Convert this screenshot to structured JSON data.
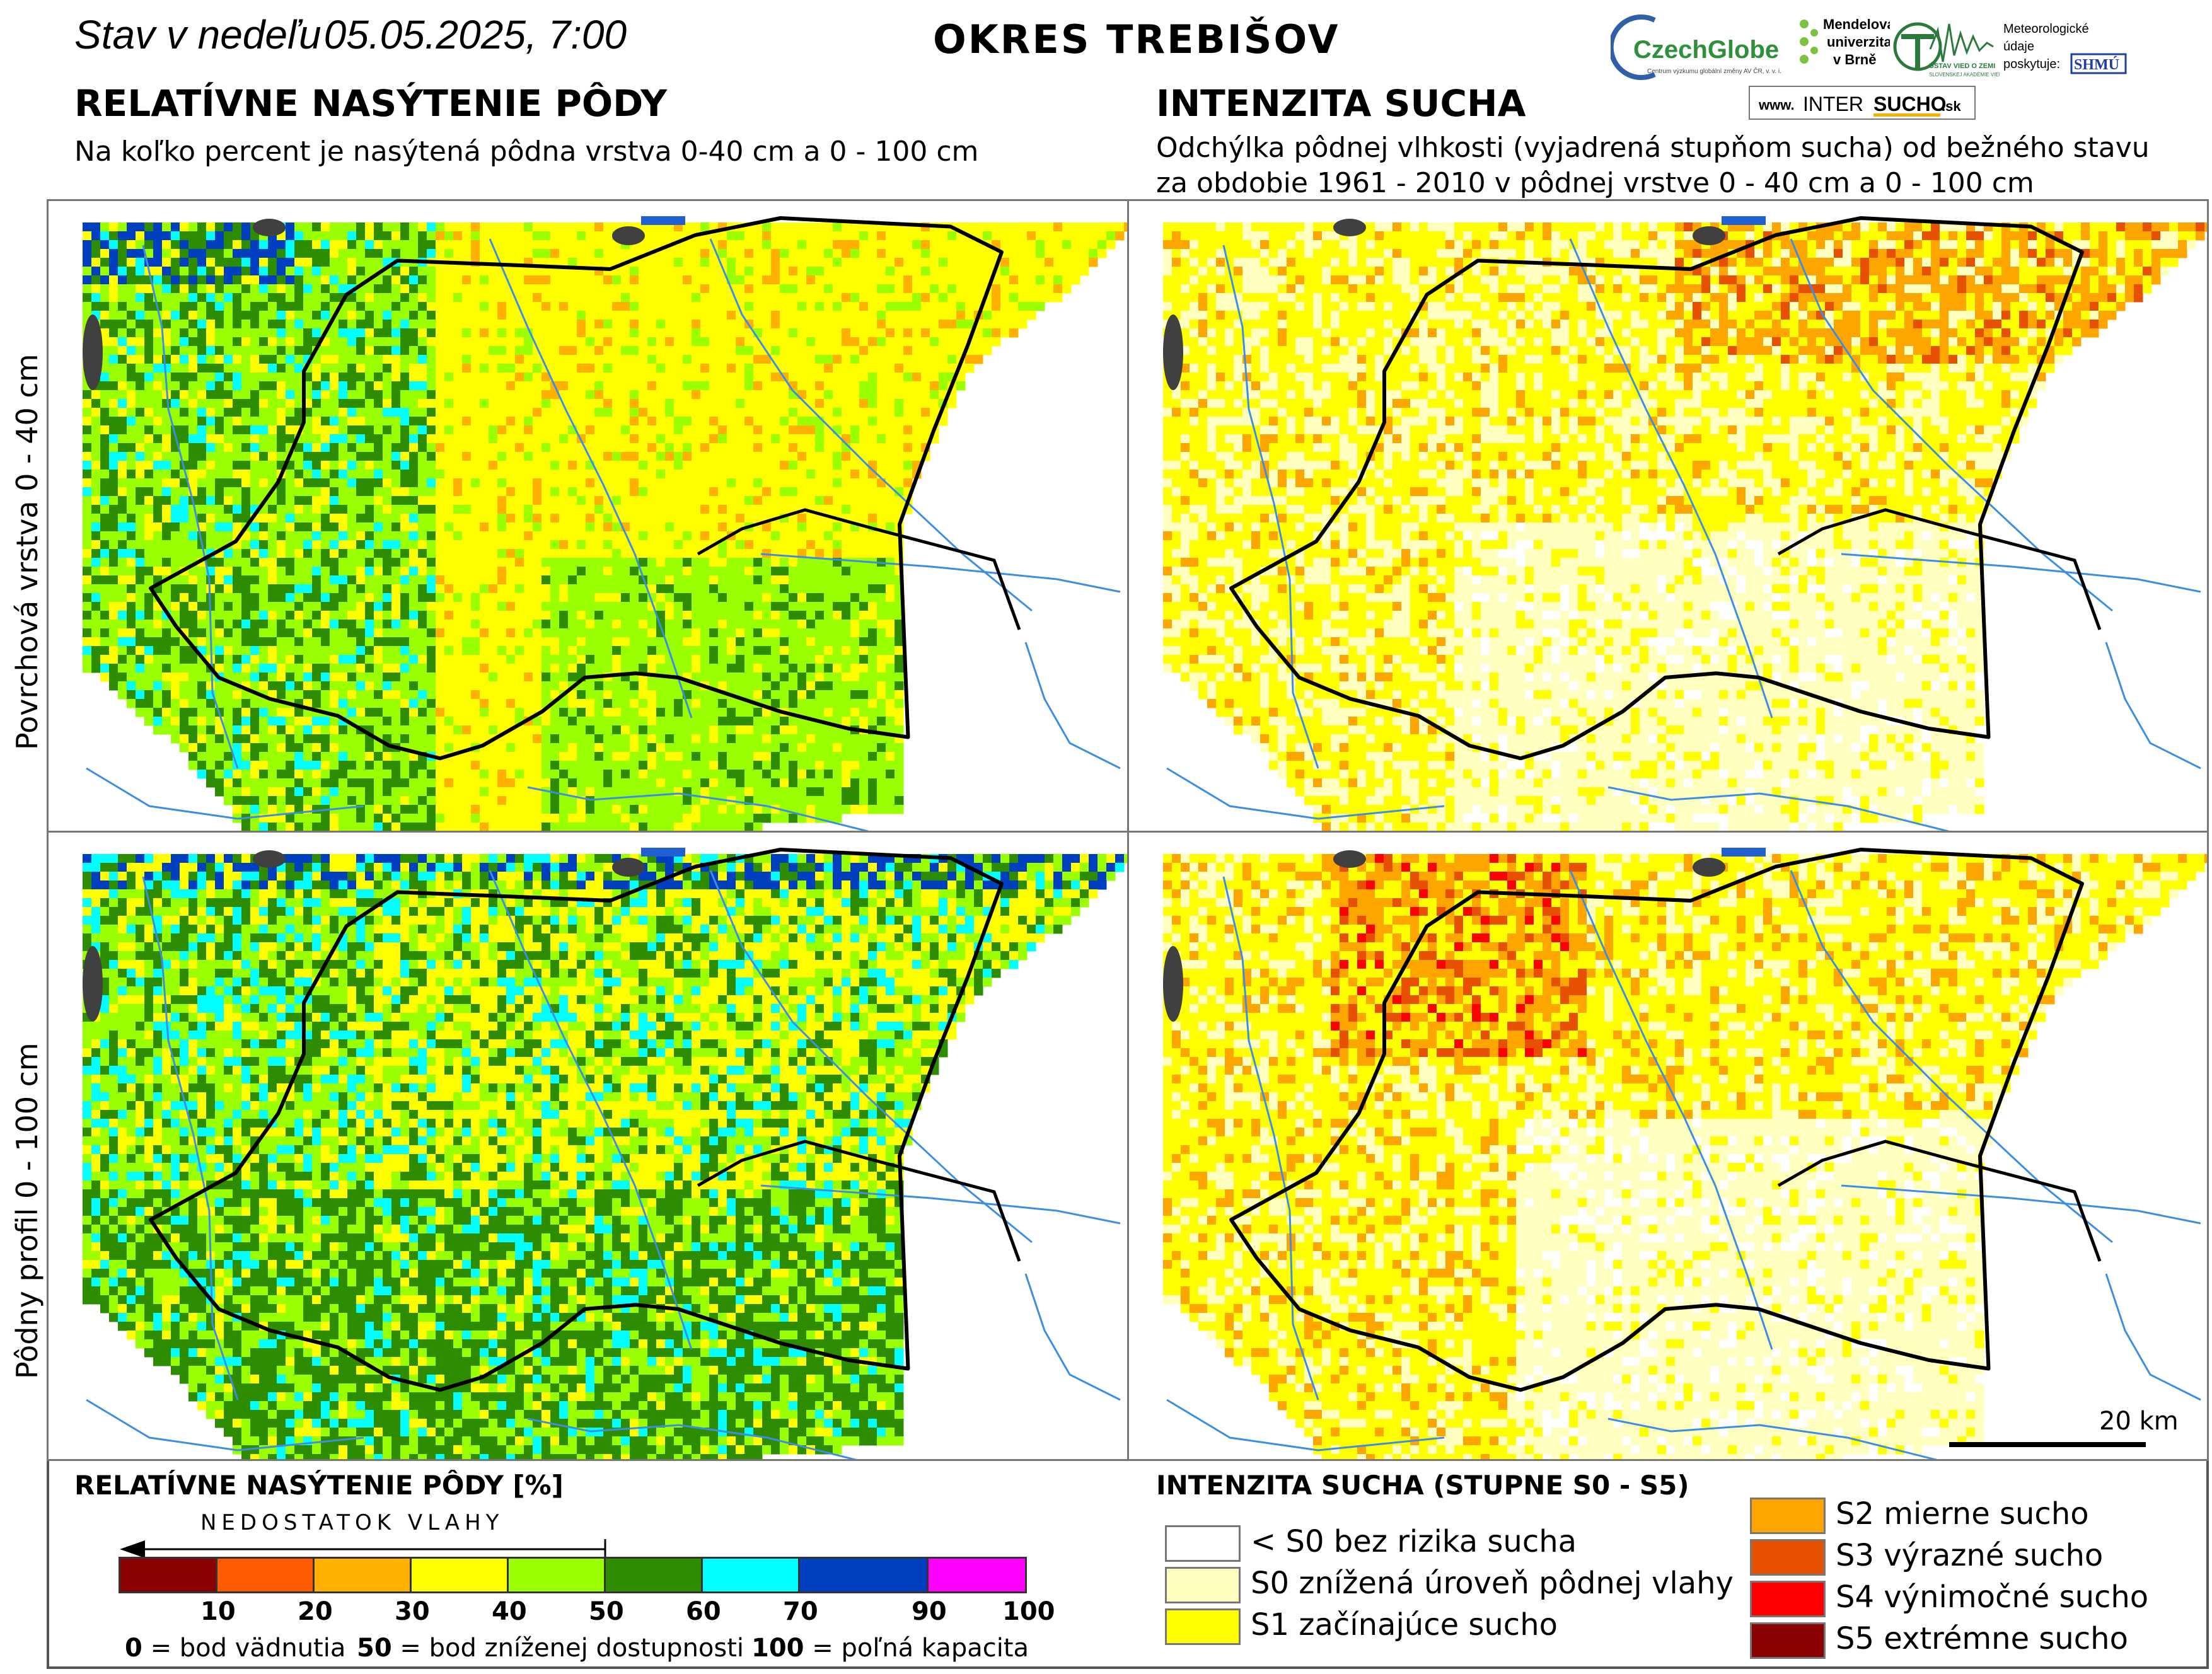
{
  "header": {
    "date_prefix": "Stav v nedeľu",
    "date_value": "05.05.2025, 7:00",
    "district": "OKRES TREBIŠOV"
  },
  "left": {
    "title": "RELATÍVNE NASÝTENIE PÔDY",
    "subtitle": "Na koľko percent je nasýtená pôdna vrstva 0-40 cm a 0 - 100 cm"
  },
  "right": {
    "title": "INTENZITA SUCHA",
    "subtitle_line1": "Odchýlka pôdnej vlhkosti (vyjadrená stupňom sucha) od bežného stavu",
    "subtitle_line2": "za obdobie 1961 - 2010 v pôdnej vrstve 0 - 40 cm a 0 - 100 cm"
  },
  "rows": {
    "top_label": "Povrchová vrstva 0 - 40 cm",
    "bottom_label": "Pôdny profil 0 - 100 cm"
  },
  "scalebar": {
    "label": "20 km"
  },
  "logos": {
    "czechglobe": "CzechGlobe",
    "czechglobe_sub": "Centrum výzkumu globální změny AV ČR, v. v. i.",
    "mendel_l1": "Mendelova",
    "mendel_l2": "univerzita",
    "mendel_l3": "v Brně",
    "uvz_l1": "ÚSTAV VIED O ZEMI",
    "uvz_l2": "SLOVENSKEJ AKADÉMIE VIED",
    "meteo_l1": "Meteorologické",
    "meteo_l2": "údaje",
    "meteo_l3": "poskytuje:",
    "shmu": "SHMÚ",
    "web_prefix": "www.",
    "web_a": "INTER",
    "web_b": "SUCHO",
    "web_c": ".sk"
  },
  "legend_saturation": {
    "title": "RELATÍVNE NASÝTENIE PÔDY [%]",
    "arrow_label": "NEDOSTATOK VLAHY",
    "colors": [
      "#8b0000",
      "#ff5a00",
      "#ffb000",
      "#ffff00",
      "#9aff00",
      "#2d8c00",
      "#00ffff",
      "#0040c0",
      "#ff00ff"
    ],
    "ticks": [
      "10",
      "20",
      "30",
      "40",
      "50",
      "60",
      "70",
      "90",
      "100"
    ],
    "foot_0_num": "0",
    "foot_0_txt": "= bod vädnutia",
    "foot_50_num": "50",
    "foot_50_txt": "= bod zníženej dostupnosti",
    "foot_100_num": "100",
    "foot_100_txt": "= poľná kapacita"
  },
  "legend_drought": {
    "title": "INTENZITA SUCHA (STUPNE S0 - S5)",
    "items": [
      {
        "label": "< S0 bez rizika sucha",
        "color": "#ffffff"
      },
      {
        "label": "S0 znížená úroveň pôdnej vlahy",
        "color": "#ffffc0"
      },
      {
        "label": "S1 začínajúce sucho",
        "color": "#ffff00"
      },
      {
        "label": "S2 mierne sucho",
        "color": "#ffa500"
      },
      {
        "label": "S3 výrazné sucho",
        "color": "#e65000"
      },
      {
        "label": "S4 výnimočné sucho",
        "color": "#ff0000"
      },
      {
        "label": "S5 extrémne sucho",
        "color": "#8b0000"
      }
    ]
  },
  "colors": {
    "frame": "#555555",
    "district_border": "#000000",
    "rivers": "#3c8fe0",
    "lakes": "#2060d0",
    "urban": "#404040"
  }
}
